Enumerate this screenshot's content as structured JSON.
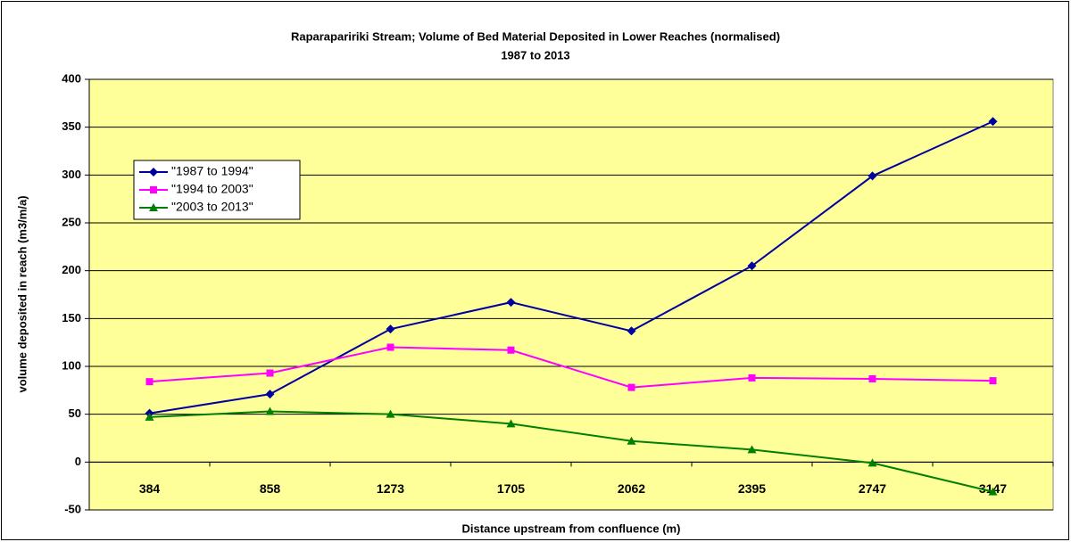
{
  "chart_data": {
    "type": "line",
    "title": "Raparapaririki Stream; Volume of Bed Material Deposited in Lower Reaches (normalised)",
    "subtitle": "1987 to 2013",
    "x_label": "Distance upstream from confluence (m)",
    "y_label": "volume deposited in reach (m3/m/a)",
    "categories": [
      "384",
      "858",
      "1273",
      "1705",
      "2062",
      "2395",
      "2747",
      "3147"
    ],
    "series": [
      {
        "name": "\"1987 to 1994\"",
        "color": "#0000a0",
        "marker": "diamond",
        "values": [
          51,
          71,
          139,
          167,
          137,
          205,
          299,
          356
        ]
      },
      {
        "name": "\"1994 to 2003\"",
        "color": "#ff00ff",
        "marker": "square",
        "values": [
          84,
          93,
          120,
          117,
          78,
          88,
          87,
          85
        ]
      },
      {
        "name": "\"2003 to 2013\"",
        "color": "#008000",
        "marker": "triangle",
        "values": [
          47,
          53,
          50,
          40,
          22,
          13,
          -1,
          -31
        ]
      }
    ],
    "ylim": [
      -50,
      400
    ],
    "yticks": [
      -50,
      0,
      50,
      100,
      150,
      200,
      250,
      300,
      350,
      400
    ],
    "grid": true,
    "legend": "upper left",
    "plot_background": "#ffff99"
  }
}
